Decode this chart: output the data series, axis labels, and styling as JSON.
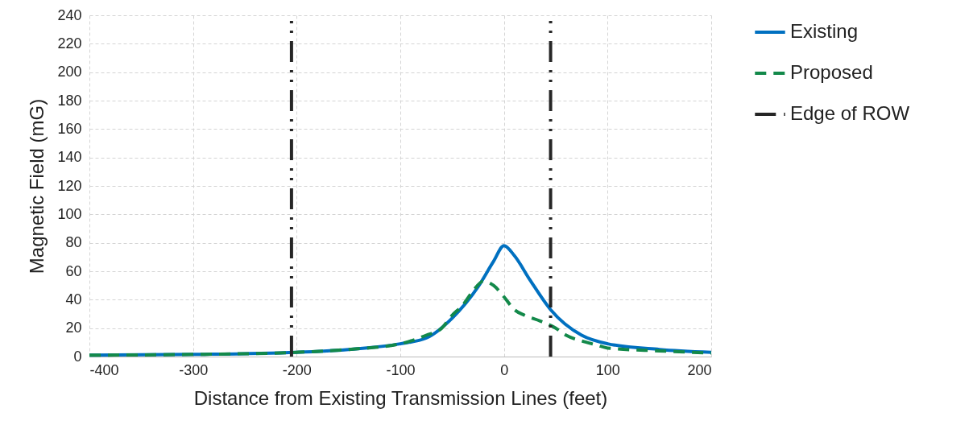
{
  "chart_data": {
    "type": "line",
    "xlabel": "Distance from Existing Transmission Lines (feet)",
    "ylabel": "Magnetic Field (mG)",
    "xlim": [
      -400,
      200
    ],
    "xticks": [
      -400,
      -300,
      -200,
      -100,
      0,
      100,
      200
    ],
    "ylim": [
      0,
      240
    ],
    "yticks": [
      0,
      20,
      40,
      60,
      80,
      100,
      120,
      140,
      160,
      180,
      200,
      220,
      240
    ],
    "grid": true,
    "legend": "right",
    "series": [
      {
        "name": "Existing",
        "color": "#0070c0",
        "line_style": "solid",
        "x": [
          -400,
          -300,
          -200,
          -150,
          -100,
          -75,
          -50,
          -25,
          -10,
          0,
          10,
          25,
          45,
          75,
          100,
          150,
          200
        ],
        "values": [
          1,
          1.5,
          3,
          5,
          9,
          13,
          27,
          49,
          67,
          78,
          71,
          54,
          33,
          15,
          9,
          5,
          3
        ]
      },
      {
        "name": "Proposed",
        "color": "#13894a",
        "line_style": "dashed",
        "x": [
          -400,
          -300,
          -200,
          -150,
          -100,
          -75,
          -60,
          -50,
          -40,
          -30,
          -20,
          -10,
          0,
          10,
          20,
          35,
          50,
          60,
          75,
          90,
          100,
          150,
          200
        ],
        "values": [
          1,
          1.5,
          3,
          5,
          9,
          15,
          20,
          29,
          36,
          46,
          53,
          50,
          42,
          33,
          29,
          25,
          20,
          15,
          11,
          8,
          6,
          4,
          2.5
        ]
      },
      {
        "name": "Edge of ROW",
        "color": "#262626",
        "line_style": "dashdot",
        "x": [
          -205,
          -205,
          null,
          45,
          45
        ],
        "values": [
          0,
          240,
          null,
          0,
          240
        ]
      }
    ]
  }
}
